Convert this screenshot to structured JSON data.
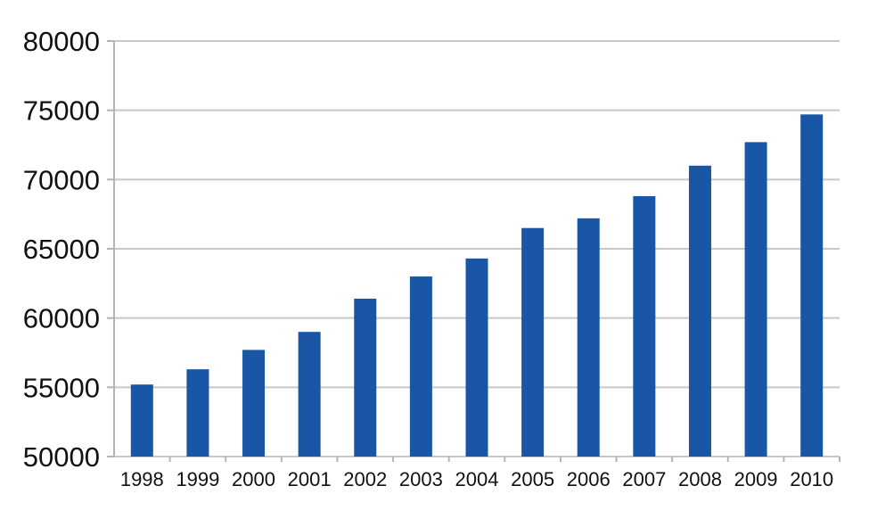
{
  "chart_data": {
    "type": "bar",
    "title": "",
    "xlabel": "",
    "ylabel": "",
    "categories": [
      "1998",
      "1999",
      "2000",
      "2001",
      "2002",
      "2003",
      "2004",
      "2005",
      "2006",
      "2007",
      "2008",
      "2009",
      "2010"
    ],
    "values": [
      55200,
      56300,
      57700,
      59000,
      61400,
      63000,
      64300,
      66500,
      67200,
      68800,
      71000,
      72700,
      74700
    ],
    "ylim": [
      50000,
      80000
    ],
    "yticks": [
      "50000",
      "55000",
      "60000",
      "65000",
      "70000",
      "75000",
      "80000"
    ],
    "grid": true,
    "legend": "none",
    "bar_color": "#1a56a6"
  }
}
